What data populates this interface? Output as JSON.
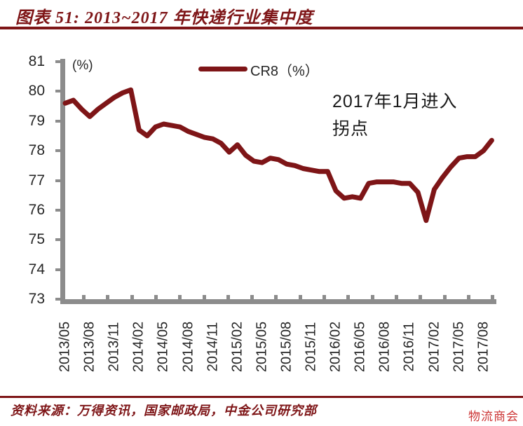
{
  "header": {
    "title": "图表 51: 2013~2017 年快递行业集中度"
  },
  "chart_data": {
    "type": "line",
    "legend_label": "CR8（%）",
    "legend_position": "top-center",
    "y_unit_label": "(%)",
    "ylim": [
      73,
      81
    ],
    "y_ticks": [
      81,
      80,
      79,
      78,
      77,
      76,
      75,
      74,
      73
    ],
    "x_tick_labels": [
      "2013/05",
      "2013/08",
      "2013/11",
      "2014/02",
      "2014/05",
      "2014/08",
      "2014/11",
      "2015/02",
      "2015/05",
      "2015/08",
      "2015/11",
      "2016/02",
      "2016/05",
      "2016/08",
      "2016/11",
      "2017/02",
      "2017/05",
      "2017/08"
    ],
    "grid": false,
    "annotation": {
      "line1": "2017年1月进入",
      "line2": "拐点"
    },
    "series": [
      {
        "name": "CR8（%）",
        "color": "#7E1517",
        "x": [
          "2013/05",
          "2013/06",
          "2013/07",
          "2013/08",
          "2013/09",
          "2013/10",
          "2013/11",
          "2013/12",
          "2014/01",
          "2014/02",
          "2014/03",
          "2014/04",
          "2014/05",
          "2014/06",
          "2014/07",
          "2014/08",
          "2014/09",
          "2014/10",
          "2014/11",
          "2014/12",
          "2015/01",
          "2015/02",
          "2015/03",
          "2015/04",
          "2015/05",
          "2015/06",
          "2015/07",
          "2015/08",
          "2015/09",
          "2015/10",
          "2015/11",
          "2015/12",
          "2016/01",
          "2016/02",
          "2016/03",
          "2016/04",
          "2016/05",
          "2016/06",
          "2016/07",
          "2016/08",
          "2016/09",
          "2016/10",
          "2016/11",
          "2016/12",
          "2017/01",
          "2017/02",
          "2017/03",
          "2017/04",
          "2017/05",
          "2017/06",
          "2017/07",
          "2017/08",
          "2017/09"
        ],
        "values": [
          79.6,
          79.7,
          79.4,
          79.15,
          79.4,
          79.6,
          79.8,
          79.95,
          80.05,
          78.7,
          78.5,
          78.8,
          78.9,
          78.85,
          78.8,
          78.65,
          78.55,
          78.45,
          78.4,
          78.25,
          77.95,
          78.2,
          77.85,
          77.65,
          77.6,
          77.75,
          77.7,
          77.55,
          77.5,
          77.4,
          77.35,
          77.3,
          77.3,
          76.65,
          76.4,
          76.45,
          76.4,
          76.9,
          76.95,
          76.95,
          76.95,
          76.9,
          76.9,
          76.6,
          75.65,
          76.7,
          77.1,
          77.45,
          77.75,
          77.8,
          77.8,
          78.0,
          78.35
        ]
      }
    ]
  },
  "footer": {
    "source": "资料来源：万得资讯，国家邮政局，中金公司研究部",
    "watermark": "物流商会"
  },
  "colors": {
    "line_dark_red": "#7E1517",
    "title_dark_red": "#7E1517",
    "axis_gray": "#8C8C8C",
    "watermark_red": "#CC3333",
    "label_text": "#262626"
  }
}
